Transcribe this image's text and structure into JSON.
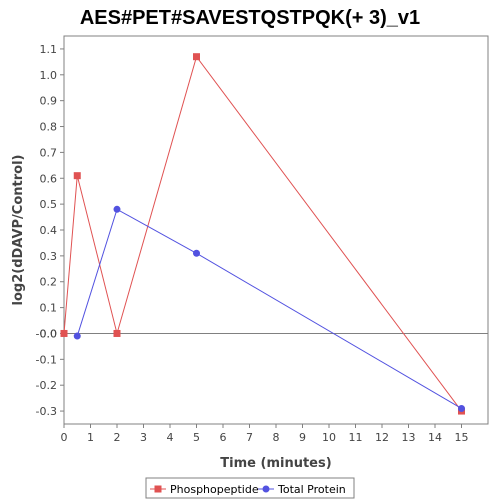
{
  "chart_data": {
    "type": "line",
    "title": "AES#PET#SAVESTQSTPQK(+ 3)_v1",
    "xlabel": "Time (minutes)",
    "ylabel": "log2(dDAVP/Control)",
    "xlim": [
      0,
      16
    ],
    "ylim": [
      -0.35,
      1.15
    ],
    "x_ticks": [
      "0",
      "1",
      "2",
      "3",
      "4",
      "5",
      "6",
      "7",
      "8",
      "9",
      "10",
      "11",
      "12",
      "13",
      "14",
      "15"
    ],
    "y_ticks": [
      "1.1",
      "1.0",
      "0.9",
      "0.8",
      "0.7",
      "0.6",
      "0.5",
      "0.4",
      "0.3",
      "0.2",
      "0.1",
      "0.0",
      "-0.0",
      "-0.1",
      "-0.2",
      "-0.3"
    ],
    "zero_line": true,
    "grid": false,
    "legend_position": "bottom",
    "series": [
      {
        "name": "Phosphopeptide",
        "color": "#e05252",
        "marker": "square",
        "x": [
          0,
          0.5,
          2,
          5,
          15
        ],
        "y": [
          0.0,
          0.61,
          0.0,
          1.07,
          -0.3
        ]
      },
      {
        "name": "Total Protein",
        "color": "#5252e0",
        "marker": "circle",
        "x": [
          0.5,
          2,
          5,
          15
        ],
        "y": [
          -0.01,
          0.48,
          0.31,
          -0.29
        ]
      }
    ]
  }
}
